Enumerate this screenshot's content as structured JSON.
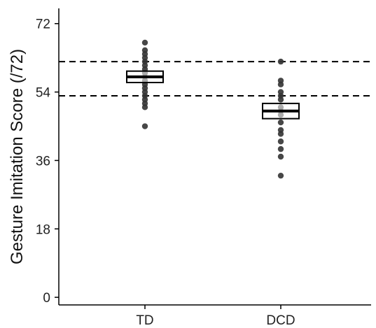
{
  "chart_data": {
    "type": "box",
    "ylabel": "Gesture Imitation Score (/72)",
    "xlabel": "",
    "ylim": [
      -2,
      76
    ],
    "yticks": [
      0,
      18,
      36,
      54,
      72
    ],
    "categories": [
      "TD",
      "DCD"
    ],
    "reference_lines": [
      53,
      62
    ],
    "boxes": [
      {
        "category": "TD",
        "q1": 56.5,
        "median": 58,
        "q3": 59.5
      },
      {
        "category": "DCD",
        "q1": 47,
        "median": 49,
        "q3": 51
      }
    ],
    "points": [
      {
        "category": "TD",
        "values": [
          45,
          50,
          51,
          52,
          53,
          54,
          55,
          56,
          57,
          58,
          59,
          60,
          61,
          62,
          63,
          64,
          65,
          67
        ]
      },
      {
        "category": "DCD",
        "values": [
          32,
          37,
          39,
          41,
          43,
          44,
          46,
          48,
          49,
          50,
          52,
          53,
          54,
          56,
          57,
          62
        ]
      }
    ],
    "grid": false,
    "colors": {
      "points": "#333333",
      "box": "#000000",
      "reference": "#000000"
    }
  }
}
